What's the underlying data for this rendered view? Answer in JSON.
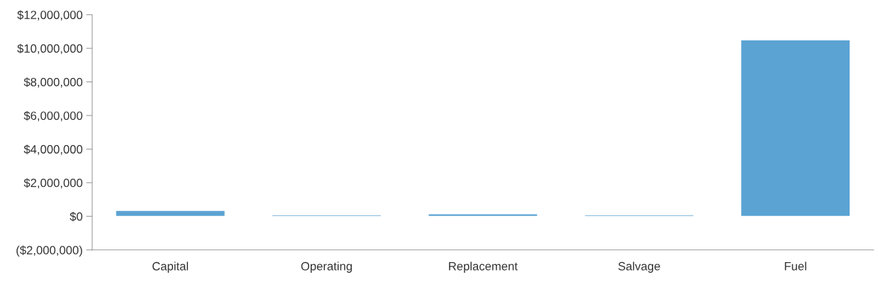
{
  "chart_data": {
    "type": "bar",
    "categories": [
      "Capital",
      "Operating",
      "Replacement",
      "Salvage",
      "Fuel"
    ],
    "values": [
      350000,
      80000,
      150000,
      80000,
      10500000
    ],
    "color": "#5ba3d3",
    "ylim": [
      -2000000,
      12000000
    ],
    "yticks": [
      {
        "value": -2000000,
        "label": "($2,000,000)"
      },
      {
        "value": 0,
        "label": "$0"
      },
      {
        "value": 2000000,
        "label": "$2,000,000"
      },
      {
        "value": 4000000,
        "label": "$4,000,000"
      },
      {
        "value": 6000000,
        "label": "$6,000,000"
      },
      {
        "value": 8000000,
        "label": "$8,000,000"
      },
      {
        "value": 10000000,
        "label": "$10,000,000"
      },
      {
        "value": 12000000,
        "label": "$12,000,000"
      }
    ],
    "grid": false
  }
}
